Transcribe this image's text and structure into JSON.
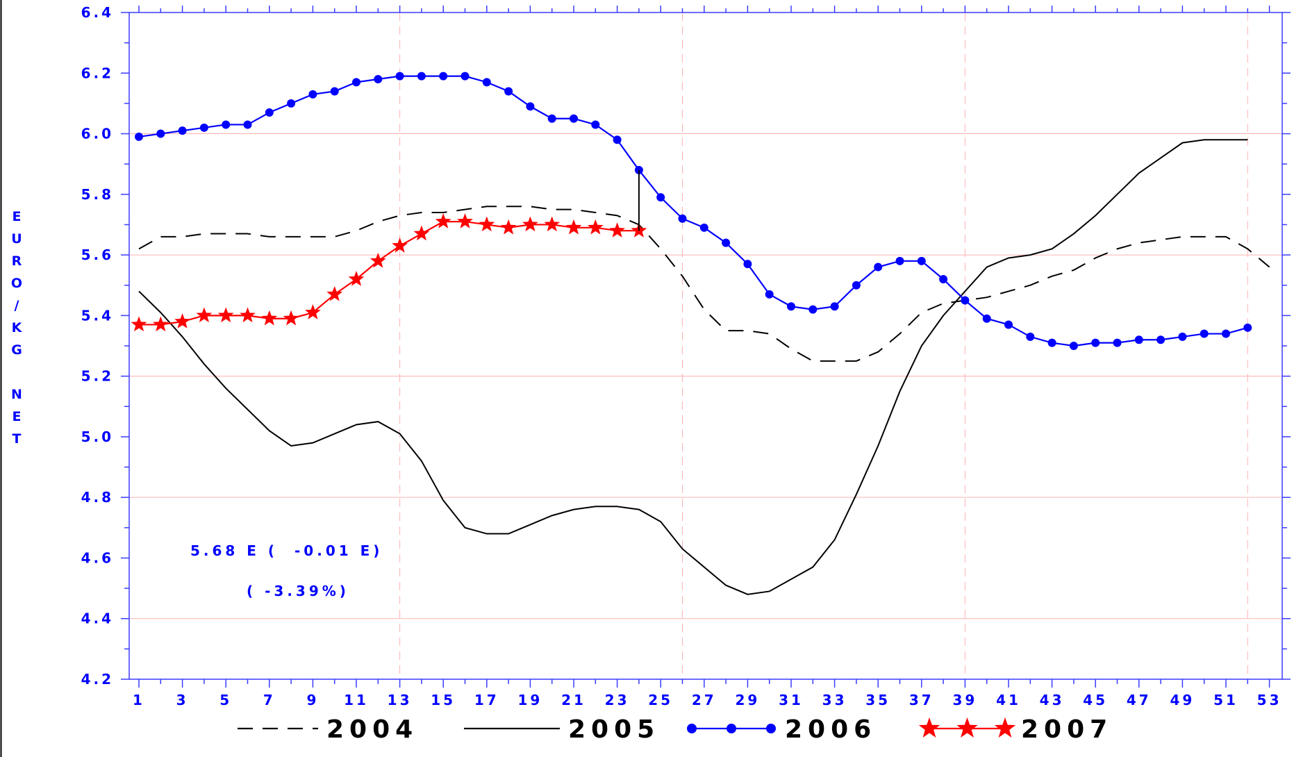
{
  "chart_data": {
    "type": "line",
    "title": "",
    "xlabel": "",
    "ylabel": "EURO/KG NET",
    "xlim": [
      1,
      53
    ],
    "ylim": [
      4.2,
      6.4
    ],
    "x_ticks": [
      1,
      3,
      5,
      7,
      9,
      11,
      13,
      15,
      17,
      19,
      21,
      23,
      25,
      27,
      29,
      31,
      33,
      35,
      37,
      39,
      41,
      43,
      45,
      47,
      49,
      51,
      53
    ],
    "y_ticks": [
      4.2,
      4.4,
      4.6,
      4.8,
      5.0,
      5.2,
      5.4,
      5.6,
      5.8,
      6.0,
      6.2,
      6.4
    ],
    "x_tick_labels": [
      "1",
      "3",
      "5",
      "7",
      "9",
      "11",
      "13",
      "15",
      "17",
      "19",
      "21",
      "23",
      "25",
      "27",
      "29",
      "31",
      "33",
      "35",
      "37",
      "39",
      "41",
      "43",
      "45",
      "47",
      "49",
      "51",
      "53"
    ],
    "y_tick_labels": [
      "4.2",
      "4.4",
      "4.6",
      "4.8",
      "5.0",
      "5.2",
      "5.4",
      "5.6",
      "5.8",
      "6.0",
      "6.2",
      "6.4"
    ],
    "grid_horizontal": [
      4.4,
      4.8,
      5.2,
      5.6,
      6.0
    ],
    "grid_vertical": [
      13,
      26,
      39,
      52
    ],
    "legend_position": "bottom",
    "annotations": {
      "line1": "5.68 E (  -0.01 E)",
      "line2": "( -3.39%)"
    },
    "series": [
      {
        "name": "2004",
        "style": "dashed",
        "color": "#000000",
        "x": [
          1,
          2,
          3,
          4,
          5,
          6,
          7,
          8,
          9,
          10,
          11,
          12,
          13,
          14,
          15,
          16,
          17,
          18,
          19,
          20,
          21,
          22,
          23,
          24,
          25,
          26,
          27,
          28,
          29,
          30,
          31,
          32,
          33,
          34,
          35,
          36,
          37,
          38,
          39,
          40,
          41,
          42,
          43,
          44,
          45,
          46,
          47,
          48,
          49,
          50,
          51,
          52,
          53
        ],
        "y": [
          5.62,
          5.66,
          5.66,
          5.67,
          5.67,
          5.67,
          5.66,
          5.66,
          5.66,
          5.66,
          5.68,
          5.71,
          5.73,
          5.74,
          5.74,
          5.75,
          5.76,
          5.76,
          5.76,
          5.75,
          5.75,
          5.74,
          5.73,
          5.7,
          5.62,
          5.53,
          5.42,
          5.35,
          5.35,
          5.34,
          5.29,
          5.25,
          5.25,
          5.25,
          5.28,
          5.34,
          5.41,
          5.44,
          5.45,
          5.46,
          5.48,
          5.5,
          5.53,
          5.55,
          5.59,
          5.62,
          5.64,
          5.65,
          5.66,
          5.66,
          5.66,
          5.62,
          5.56
        ]
      },
      {
        "name": "2005",
        "style": "solid",
        "color": "#000000",
        "x": [
          1,
          2,
          3,
          4,
          5,
          6,
          7,
          8,
          9,
          10,
          11,
          12,
          13,
          14,
          15,
          16,
          17,
          18,
          19,
          20,
          21,
          22,
          23,
          24,
          25,
          26,
          27,
          28,
          29,
          30,
          31,
          32,
          33,
          34,
          35,
          36,
          37,
          38,
          39,
          40,
          41,
          42,
          43,
          44,
          45,
          46,
          47,
          48,
          49,
          50,
          51,
          52
        ],
        "y": [
          5.48,
          5.41,
          5.33,
          5.24,
          5.16,
          5.09,
          5.02,
          4.97,
          4.98,
          5.01,
          5.04,
          5.05,
          5.01,
          4.92,
          4.79,
          4.7,
          4.68,
          4.68,
          4.71,
          4.74,
          4.76,
          4.77,
          4.77,
          4.76,
          4.72,
          4.63,
          4.57,
          4.51,
          4.48,
          4.49,
          4.53,
          4.57,
          4.66,
          4.81,
          4.97,
          5.15,
          5.3,
          5.4,
          5.48,
          5.56,
          5.59,
          5.6,
          5.62,
          5.67,
          5.73,
          5.8,
          5.87,
          5.92,
          5.97,
          5.98,
          5.98,
          5.98
        ]
      },
      {
        "name": "2006",
        "style": "line-dot",
        "color": "#0000ff",
        "x": [
          1,
          2,
          3,
          4,
          5,
          6,
          7,
          8,
          9,
          10,
          11,
          12,
          13,
          14,
          15,
          16,
          17,
          18,
          19,
          20,
          21,
          22,
          23,
          24,
          25,
          26,
          27,
          28,
          29,
          30,
          31,
          32,
          33,
          34,
          35,
          36,
          37,
          38,
          39,
          40,
          41,
          42,
          43,
          44,
          45,
          46,
          47,
          48,
          49,
          50,
          51,
          52
        ],
        "y": [
          5.99,
          6.0,
          6.01,
          6.02,
          6.03,
          6.03,
          6.07,
          6.1,
          6.13,
          6.14,
          6.17,
          6.18,
          6.19,
          6.19,
          6.19,
          6.19,
          6.17,
          6.14,
          6.09,
          6.05,
          6.05,
          6.03,
          5.98,
          5.88,
          5.79,
          5.72,
          5.69,
          5.64,
          5.57,
          5.47,
          5.43,
          5.42,
          5.43,
          5.5,
          5.56,
          5.58,
          5.58,
          5.52,
          5.45,
          5.39,
          5.37,
          5.33,
          5.31,
          5.3,
          5.31,
          5.31,
          5.32,
          5.32,
          5.33,
          5.34,
          5.34,
          5.36
        ]
      },
      {
        "name": "2007",
        "style": "line-star",
        "color": "#ff0000",
        "x": [
          1,
          2,
          3,
          4,
          5,
          6,
          7,
          8,
          9,
          10,
          11,
          12,
          13,
          14,
          15,
          16,
          17,
          18,
          19,
          20,
          21,
          22,
          23,
          24
        ],
        "y": [
          5.37,
          5.37,
          5.38,
          5.4,
          5.4,
          5.4,
          5.39,
          5.39,
          5.41,
          5.47,
          5.52,
          5.58,
          5.63,
          5.67,
          5.71,
          5.71,
          5.7,
          5.69,
          5.7,
          5.7,
          5.69,
          5.69,
          5.68,
          5.68
        ]
      }
    ]
  }
}
